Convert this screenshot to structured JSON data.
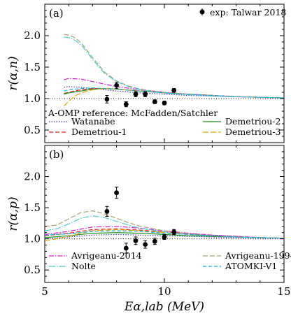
{
  "chart_data": [
    {
      "type": "line",
      "panel_label": "(a)",
      "ylabel": "r(α,n)",
      "xlim": [
        5,
        15
      ],
      "ylim": [
        0.3,
        2.5
      ],
      "yticks": [
        0.5,
        1.0,
        1.5,
        2.0
      ],
      "reference_line": 1.0,
      "legend_title": "A-OMP reference: McFadden/Satchler",
      "experiment": {
        "name": "exp: Talwar 2018",
        "x": [
          7.6,
          8.0,
          8.4,
          8.8,
          9.2,
          9.6,
          10.0,
          10.4
        ],
        "y": [
          0.99,
          1.21,
          0.91,
          1.07,
          1.07,
          0.95,
          0.93,
          1.13
        ],
        "err": [
          0.06,
          0.05,
          0.04,
          0.04,
          0.04,
          0.03,
          0.03,
          0.03
        ]
      },
      "series": [
        {
          "name": "Watanabe",
          "color": "#3a3acc",
          "dash": "1.5,2",
          "x": [
            5.8,
            6.0,
            6.5,
            7.0,
            7.5,
            8.0,
            9.0,
            10.0,
            11.0,
            12.0,
            13.0,
            14.0,
            15.0
          ],
          "y": [
            1.18,
            1.19,
            1.18,
            1.16,
            1.14,
            1.12,
            1.09,
            1.07,
            1.05,
            1.04,
            1.03,
            1.02,
            1.01
          ]
        },
        {
          "name": "Demetriou-1",
          "color": "#d62020",
          "dash": "6,3",
          "x": [
            5.8,
            6.0,
            6.5,
            7.0,
            7.5,
            8.0,
            9.0,
            10.0,
            11.0,
            12.0,
            13.0,
            14.0,
            15.0
          ],
          "y": [
            1.08,
            1.1,
            1.14,
            1.16,
            1.16,
            1.15,
            1.12,
            1.09,
            1.07,
            1.05,
            1.03,
            1.02,
            1.01
          ]
        },
        {
          "name": "Demetriou-2",
          "color": "#1e8c1e",
          "dash": "",
          "x": [
            5.8,
            6.0,
            6.5,
            7.0,
            7.5,
            8.0,
            9.0,
            10.0,
            11.0,
            12.0,
            13.0,
            14.0,
            15.0
          ],
          "y": [
            1.07,
            1.09,
            1.12,
            1.15,
            1.16,
            1.15,
            1.12,
            1.09,
            1.07,
            1.05,
            1.03,
            1.02,
            1.01
          ]
        },
        {
          "name": "Demetriou-3",
          "color": "#e8a010",
          "dash": "8,3",
          "x": [
            5.8,
            6.0,
            6.3,
            6.6,
            7.0,
            7.5,
            8.0,
            9.0,
            10.0,
            11.0,
            12.0,
            13.0,
            14.0,
            15.0
          ],
          "y": [
            0.88,
            0.96,
            1.05,
            1.1,
            1.14,
            1.16,
            1.15,
            1.12,
            1.09,
            1.07,
            1.05,
            1.03,
            1.02,
            1.01
          ]
        },
        {
          "name": "Avrigeanu-2014",
          "color": "#d020c8",
          "dash": "7,2,1.5,2",
          "x": [
            5.8,
            6.0,
            6.5,
            7.0,
            7.5,
            8.0,
            9.0,
            10.0,
            11.0,
            12.0,
            13.0,
            14.0,
            15.0
          ],
          "y": [
            1.3,
            1.32,
            1.31,
            1.27,
            1.23,
            1.19,
            1.14,
            1.1,
            1.07,
            1.05,
            1.03,
            1.02,
            1.01
          ]
        },
        {
          "name": "Avrigeanu-1994",
          "color": "#a3a37a",
          "dash": "7,3",
          "x": [
            5.8,
            6.0,
            6.3,
            6.6,
            7.0,
            7.5,
            8.0,
            8.5,
            9.0,
            9.5,
            10.0,
            11.0,
            12.0,
            13.0,
            14.0,
            15.0
          ],
          "y": [
            2.02,
            2.01,
            1.96,
            1.85,
            1.65,
            1.42,
            1.28,
            1.2,
            1.15,
            1.12,
            1.1,
            1.07,
            1.05,
            1.03,
            1.02,
            1.01
          ]
        },
        {
          "name": "Nolte",
          "color": "#55c8c8",
          "dash": "9,2,1.5,2",
          "x": [
            5.8,
            6.0,
            6.3,
            6.6,
            7.0,
            7.5,
            8.0,
            8.5,
            9.0,
            9.5,
            10.0,
            11.0,
            12.0,
            13.0,
            14.0,
            15.0
          ],
          "y": [
            1.98,
            1.97,
            1.92,
            1.82,
            1.62,
            1.4,
            1.27,
            1.19,
            1.14,
            1.11,
            1.09,
            1.06,
            1.04,
            1.03,
            1.02,
            1.01
          ]
        },
        {
          "name": "ATOMKI-V1",
          "color": "#20a8d8",
          "dash": "5,3",
          "x": [
            5.8,
            6.0,
            6.5,
            7.0,
            7.5,
            8.0,
            9.0,
            10.0,
            11.0,
            12.0,
            13.0,
            14.0,
            15.0
          ],
          "y": [
            1.12,
            1.14,
            1.16,
            1.17,
            1.16,
            1.15,
            1.12,
            1.09,
            1.07,
            1.05,
            1.03,
            1.02,
            1.01
          ]
        }
      ]
    },
    {
      "type": "line",
      "panel_label": "(b)",
      "ylabel": "r(α,p)",
      "xlabel": "Eα,lab (MeV)",
      "xlim": [
        5,
        15
      ],
      "ylim": [
        0.3,
        2.5
      ],
      "xticks": [
        5,
        10,
        15
      ],
      "yticks": [
        0.5,
        1.0,
        1.5,
        2.0
      ],
      "reference_line": 1.0,
      "experiment": {
        "x": [
          7.6,
          8.0,
          8.4,
          8.8,
          9.2,
          9.6,
          10.0,
          10.4
        ],
        "y": [
          1.44,
          1.74,
          0.85,
          0.97,
          0.91,
          0.96,
          1.03,
          1.11
        ],
        "err": [
          0.08,
          0.09,
          0.08,
          0.06,
          0.06,
          0.05,
          0.04,
          0.04
        ]
      },
      "series": [
        {
          "name": "Watanabe",
          "color": "#3a3acc",
          "dash": "1.5,2",
          "x": [
            5,
            6,
            7,
            8,
            9,
            10,
            11,
            12,
            13,
            14,
            15
          ],
          "y": [
            1.0,
            1.03,
            1.06,
            1.07,
            1.06,
            1.05,
            1.04,
            1.03,
            1.02,
            1.01,
            1.01
          ]
        },
        {
          "name": "Demetriou-1",
          "color": "#d62020",
          "dash": "6,3",
          "x": [
            5,
            6,
            7,
            8,
            9,
            10,
            11,
            12,
            13,
            14,
            15
          ],
          "y": [
            1.05,
            1.09,
            1.15,
            1.16,
            1.14,
            1.11,
            1.08,
            1.06,
            1.04,
            1.02,
            1.01
          ]
        },
        {
          "name": "Demetriou-2",
          "color": "#1e8c1e",
          "dash": "",
          "x": [
            5,
            6,
            7,
            8,
            9,
            10,
            11,
            12,
            13,
            14,
            15
          ],
          "y": [
            1.02,
            1.05,
            1.09,
            1.1,
            1.09,
            1.07,
            1.05,
            1.04,
            1.03,
            1.02,
            1.01
          ]
        },
        {
          "name": "Demetriou-3",
          "color": "#e8a010",
          "dash": "8,3",
          "x": [
            5,
            5.5,
            6,
            6.5,
            7,
            8,
            9,
            10,
            11,
            12,
            13,
            14,
            15
          ],
          "y": [
            0.97,
            1.0,
            1.04,
            1.09,
            1.13,
            1.15,
            1.13,
            1.1,
            1.07,
            1.05,
            1.03,
            1.02,
            1.01
          ]
        },
        {
          "name": "Avrigeanu-2014",
          "color": "#d020c8",
          "dash": "7,2,1.5,2",
          "x": [
            5,
            6,
            7,
            8,
            9,
            10,
            11,
            12,
            13,
            14,
            15
          ],
          "y": [
            1.07,
            1.12,
            1.19,
            1.2,
            1.17,
            1.13,
            1.09,
            1.06,
            1.04,
            1.02,
            1.01
          ]
        },
        {
          "name": "Avrigeanu-1994",
          "color": "#a3a37a",
          "dash": "7,3",
          "x": [
            5,
            5.5,
            6,
            6.5,
            7,
            7.5,
            8,
            8.5,
            9,
            10,
            11,
            12,
            13,
            14,
            15
          ],
          "y": [
            1.2,
            1.22,
            1.32,
            1.42,
            1.45,
            1.4,
            1.33,
            1.26,
            1.2,
            1.13,
            1.08,
            1.05,
            1.03,
            1.02,
            1.01
          ]
        },
        {
          "name": "Nolte",
          "color": "#55c8c8",
          "dash": "9,2,1.5,2",
          "x": [
            5,
            5.5,
            6,
            6.5,
            7,
            7.5,
            8,
            8.5,
            9,
            10,
            11,
            12,
            13,
            14,
            15
          ],
          "y": [
            1.13,
            1.16,
            1.24,
            1.33,
            1.37,
            1.34,
            1.28,
            1.22,
            1.17,
            1.11,
            1.07,
            1.05,
            1.03,
            1.02,
            1.01
          ]
        },
        {
          "name": "ATOMKI-V1",
          "color": "#20a8d8",
          "dash": "5,3",
          "x": [
            5,
            6,
            7,
            8,
            9,
            10,
            11,
            12,
            13,
            14,
            15
          ],
          "y": [
            1.06,
            1.08,
            1.12,
            1.13,
            1.12,
            1.09,
            1.07,
            1.05,
            1.03,
            1.02,
            1.01
          ]
        }
      ]
    }
  ]
}
